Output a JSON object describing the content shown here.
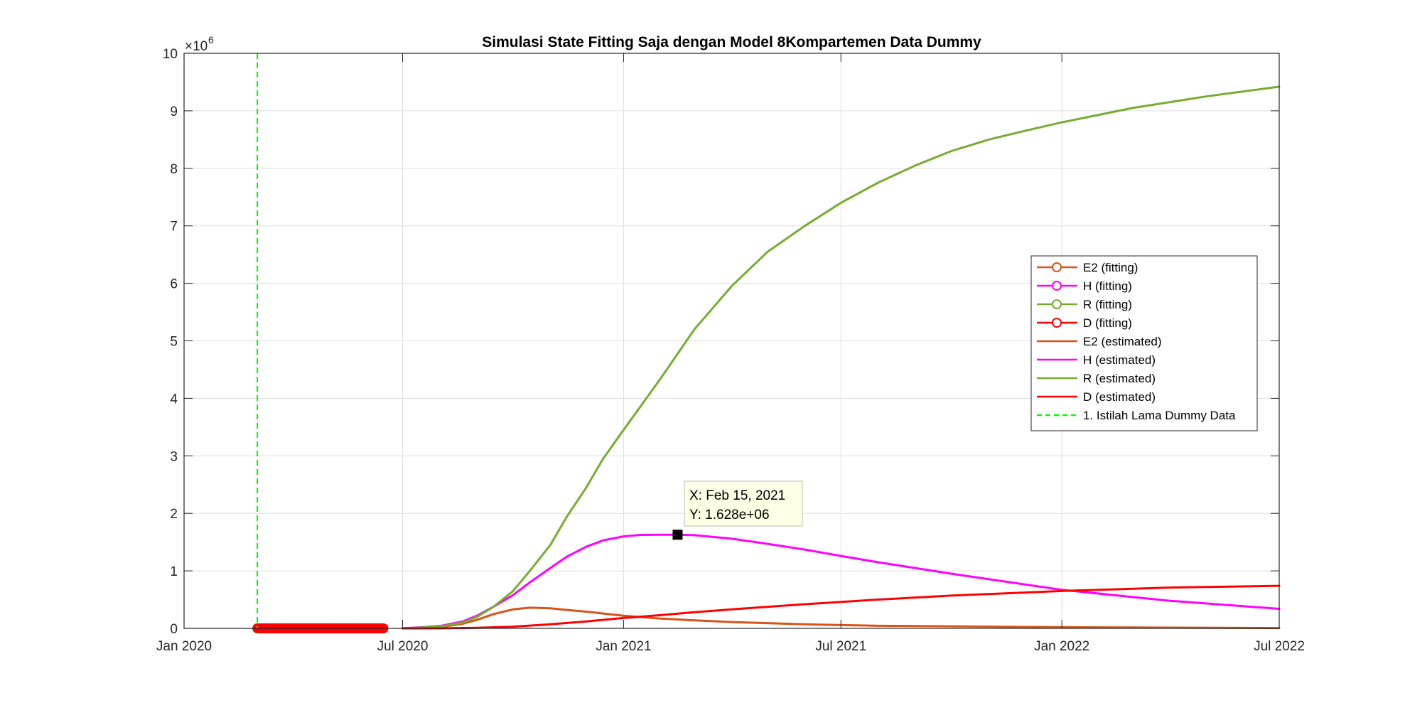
{
  "chart_data": {
    "type": "line",
    "title": "Simulasi State Fitting Saja dengan Model 8Kompartemen Data Dummy",
    "xlabel": "",
    "ylabel": "",
    "exponent_label": "×10",
    "exponent_power": "6",
    "xlim": [
      "2020-01-01",
      "2022-07-01"
    ],
    "ylim": [
      0,
      10
    ],
    "xticks": [
      {
        "date": "2020-01-01",
        "label": "Jan 2020"
      },
      {
        "date": "2020-07-01",
        "label": "Jul 2020"
      },
      {
        "date": "2021-01-01",
        "label": "Jan 2021"
      },
      {
        "date": "2021-07-01",
        "label": "Jul 2021"
      },
      {
        "date": "2022-01-01",
        "label": "Jan 2022"
      },
      {
        "date": "2022-07-01",
        "label": "Jul 2022"
      }
    ],
    "yticks": [
      "0",
      "1",
      "2",
      "3",
      "4",
      "5",
      "6",
      "7",
      "8",
      "9",
      "10"
    ],
    "grid": true,
    "legend_position": "right",
    "legend": [
      {
        "label": "E2 (fitting)",
        "color": "#D95319",
        "marker": "circle",
        "style": "solid"
      },
      {
        "label": "H (fitting)",
        "color": "#FF00FF",
        "marker": "circle",
        "style": "solid"
      },
      {
        "label": "R (fitting)",
        "color": "#77AC30",
        "marker": "circle",
        "style": "solid"
      },
      {
        "label": "D (fitting)",
        "color": "#FF0000",
        "marker": "circle",
        "style": "solid"
      },
      {
        "label": "E2 (estimated)",
        "color": "#D95319",
        "marker": "none",
        "style": "solid"
      },
      {
        "label": "H (estimated)",
        "color": "#FF00FF",
        "marker": "none",
        "style": "solid"
      },
      {
        "label": "R (estimated)",
        "color": "#77AC30",
        "marker": "none",
        "style": "solid"
      },
      {
        "label": "D (estimated)",
        "color": "#FF0000",
        "marker": "none",
        "style": "solid"
      },
      {
        "label": "1. Istilah Lama Dummy Data",
        "color": "#00FF00",
        "marker": "none",
        "style": "dashed"
      }
    ],
    "fitting_range": [
      "2020-03-02",
      "2020-06-15"
    ],
    "fitting_value": 0,
    "vline": {
      "date": "2020-03-02",
      "color": "#00FF00"
    },
    "series": [
      {
        "name": "E2 (estimated)",
        "color": "#D95319",
        "x": [
          "2020-07-01",
          "2020-08-01",
          "2020-08-20",
          "2020-09-01",
          "2020-09-15",
          "2020-10-01",
          "2020-10-15",
          "2020-11-01",
          "2020-11-15",
          "2020-12-01",
          "2021-01-01",
          "2021-02-01",
          "2021-03-01",
          "2021-04-01",
          "2021-06-01",
          "2021-08-01",
          "2022-01-01",
          "2022-07-01"
        ],
        "y": [
          0.0,
          0.02,
          0.08,
          0.15,
          0.25,
          0.33,
          0.36,
          0.35,
          0.32,
          0.29,
          0.22,
          0.17,
          0.14,
          0.11,
          0.07,
          0.045,
          0.02,
          0.005
        ]
      },
      {
        "name": "H (estimated)",
        "color": "#FF00FF",
        "x": [
          "2020-07-01",
          "2020-08-01",
          "2020-08-20",
          "2020-09-01",
          "2020-09-15",
          "2020-10-01",
          "2020-10-15",
          "2020-11-01",
          "2020-11-15",
          "2020-12-01",
          "2020-12-15",
          "2021-01-01",
          "2021-01-15",
          "2021-02-01",
          "2021-02-15",
          "2021-03-01",
          "2021-04-01",
          "2021-05-01",
          "2021-06-01",
          "2021-07-01",
          "2021-08-01",
          "2021-10-01",
          "2022-01-01",
          "2022-04-01",
          "2022-07-01"
        ],
        "y": [
          0.0,
          0.04,
          0.12,
          0.22,
          0.38,
          0.58,
          0.8,
          1.05,
          1.25,
          1.42,
          1.53,
          1.6,
          1.625,
          1.628,
          1.628,
          1.62,
          1.56,
          1.47,
          1.37,
          1.26,
          1.15,
          0.95,
          0.67,
          0.48,
          0.34
        ]
      },
      {
        "name": "R (estimated)",
        "color": "#77AC30",
        "x": [
          "2020-07-01",
          "2020-08-01",
          "2020-08-20",
          "2020-09-01",
          "2020-09-15",
          "2020-10-01",
          "2020-10-15",
          "2020-11-01",
          "2020-11-15",
          "2020-12-01",
          "2020-12-15",
          "2021-01-01",
          "2021-02-01",
          "2021-03-01",
          "2021-04-01",
          "2021-05-01",
          "2021-06-01",
          "2021-07-01",
          "2021-08-01",
          "2021-09-01",
          "2021-10-01",
          "2021-11-01",
          "2021-12-01",
          "2022-01-01",
          "2022-03-01",
          "2022-05-01",
          "2022-07-01"
        ],
        "y": [
          0.0,
          0.03,
          0.1,
          0.2,
          0.38,
          0.65,
          1.0,
          1.45,
          1.95,
          2.45,
          2.95,
          3.45,
          4.35,
          5.2,
          5.95,
          6.55,
          7.0,
          7.4,
          7.75,
          8.05,
          8.3,
          8.5,
          8.65,
          8.8,
          9.05,
          9.25,
          9.42
        ]
      },
      {
        "name": "D (estimated)",
        "color": "#FF0000",
        "x": [
          "2020-07-01",
          "2020-08-01",
          "2020-09-01",
          "2020-10-01",
          "2020-11-01",
          "2020-12-01",
          "2021-01-01",
          "2021-02-01",
          "2021-03-01",
          "2021-04-01",
          "2021-06-01",
          "2021-08-01",
          "2021-10-01",
          "2022-01-01",
          "2022-04-01",
          "2022-07-01"
        ],
        "y": [
          0.0,
          0.0,
          0.01,
          0.03,
          0.07,
          0.12,
          0.18,
          0.23,
          0.28,
          0.33,
          0.42,
          0.5,
          0.57,
          0.65,
          0.71,
          0.74
        ]
      }
    ],
    "datatip": {
      "x_text": "X: Feb 15, 2021",
      "y_text": "Y: 1.628e+06",
      "x": "2021-02-15",
      "y": 1.628
    }
  }
}
